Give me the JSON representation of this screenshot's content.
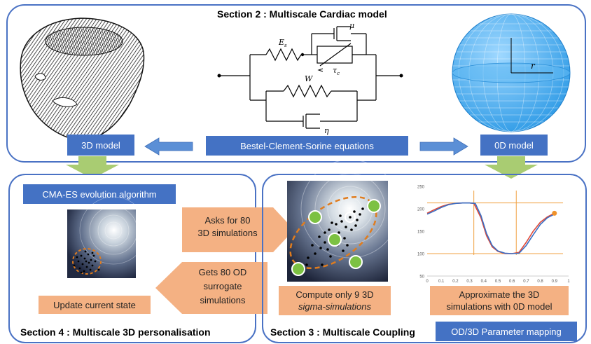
{
  "section2": {
    "title": "Section 2 : Multiscale Cardiac model",
    "equations_label": "Bestel-Clement-Sorine equations",
    "model3d_label": "3D model",
    "model0d_label": "0D model",
    "circuit": {
      "Es": "E",
      "Es_sub": "s",
      "mu": "μ",
      "tau": "τ",
      "tau_sub": "c",
      "W": "W",
      "eta": "η"
    },
    "sphere_radius_label": "r"
  },
  "section4": {
    "title": "Section 4 : Multiscale 3D personalisation",
    "cmaes_label": "CMA-ES evolution algorithm",
    "update_label": "Update current state"
  },
  "section3": {
    "title": "Section 3 : Multiscale Coupling",
    "ask_line1": "Asks for 80",
    "ask_line2": "3D simulations",
    "gets_line1": "Gets 80 OD",
    "gets_line2": "surrogate",
    "gets_line3": "simulations",
    "compute_line1": "Compute only 9 3D",
    "compute_line2": "sigma-simulations",
    "approx_line1": "Approximate the 3D",
    "approx_line2": "simulations with 0D model",
    "mapping_label": "OD/3D Parameter mapping"
  },
  "chart_data": {
    "type": "line",
    "x_ticks": [
      "0",
      "0.1",
      "0.2",
      "0.3",
      "0.4",
      "0.5",
      "0.6",
      "0.7",
      "0.8",
      "0.9",
      "1"
    ],
    "y_ticks": [
      "50",
      "100",
      "150",
      "200",
      "250"
    ],
    "xlim": [
      0,
      1
    ],
    "ylim": [
      50,
      250
    ],
    "series": [
      {
        "color": "#e04a3a",
        "x": [
          0.0,
          0.05,
          0.1,
          0.15,
          0.2,
          0.25,
          0.3,
          0.33,
          0.38,
          0.42,
          0.46,
          0.5,
          0.55,
          0.6,
          0.65,
          0.7,
          0.75,
          0.8,
          0.85,
          0.9
        ],
        "y": [
          190,
          198,
          205,
          210,
          212,
          213,
          213,
          212,
          180,
          140,
          115,
          105,
          100,
          100,
          103,
          125,
          150,
          170,
          182,
          190
        ]
      },
      {
        "color": "#3a6fc4",
        "x": [
          0.0,
          0.05,
          0.1,
          0.15,
          0.2,
          0.25,
          0.3,
          0.34,
          0.38,
          0.42,
          0.46,
          0.5,
          0.55,
          0.6,
          0.65,
          0.7,
          0.75,
          0.8,
          0.85,
          0.9
        ],
        "y": [
          188,
          195,
          203,
          209,
          212,
          213,
          213,
          212,
          185,
          145,
          118,
          106,
          101,
          100,
          101,
          118,
          142,
          165,
          180,
          188
        ]
      }
    ],
    "hlines": [
      213,
      100
    ],
    "vlines": [
      0.33,
      0.63
    ],
    "marker": {
      "x": 0.9,
      "y": 190,
      "color": "#f0922a"
    }
  },
  "colors": {
    "blue_box": "#4472c4",
    "salmon_box": "#f4b183",
    "panel_border": "#4a72c4",
    "arrow_blue": "#5b8fd6",
    "arrow_green": "#a9cc72",
    "dashed_orange": "#e07c1e"
  }
}
